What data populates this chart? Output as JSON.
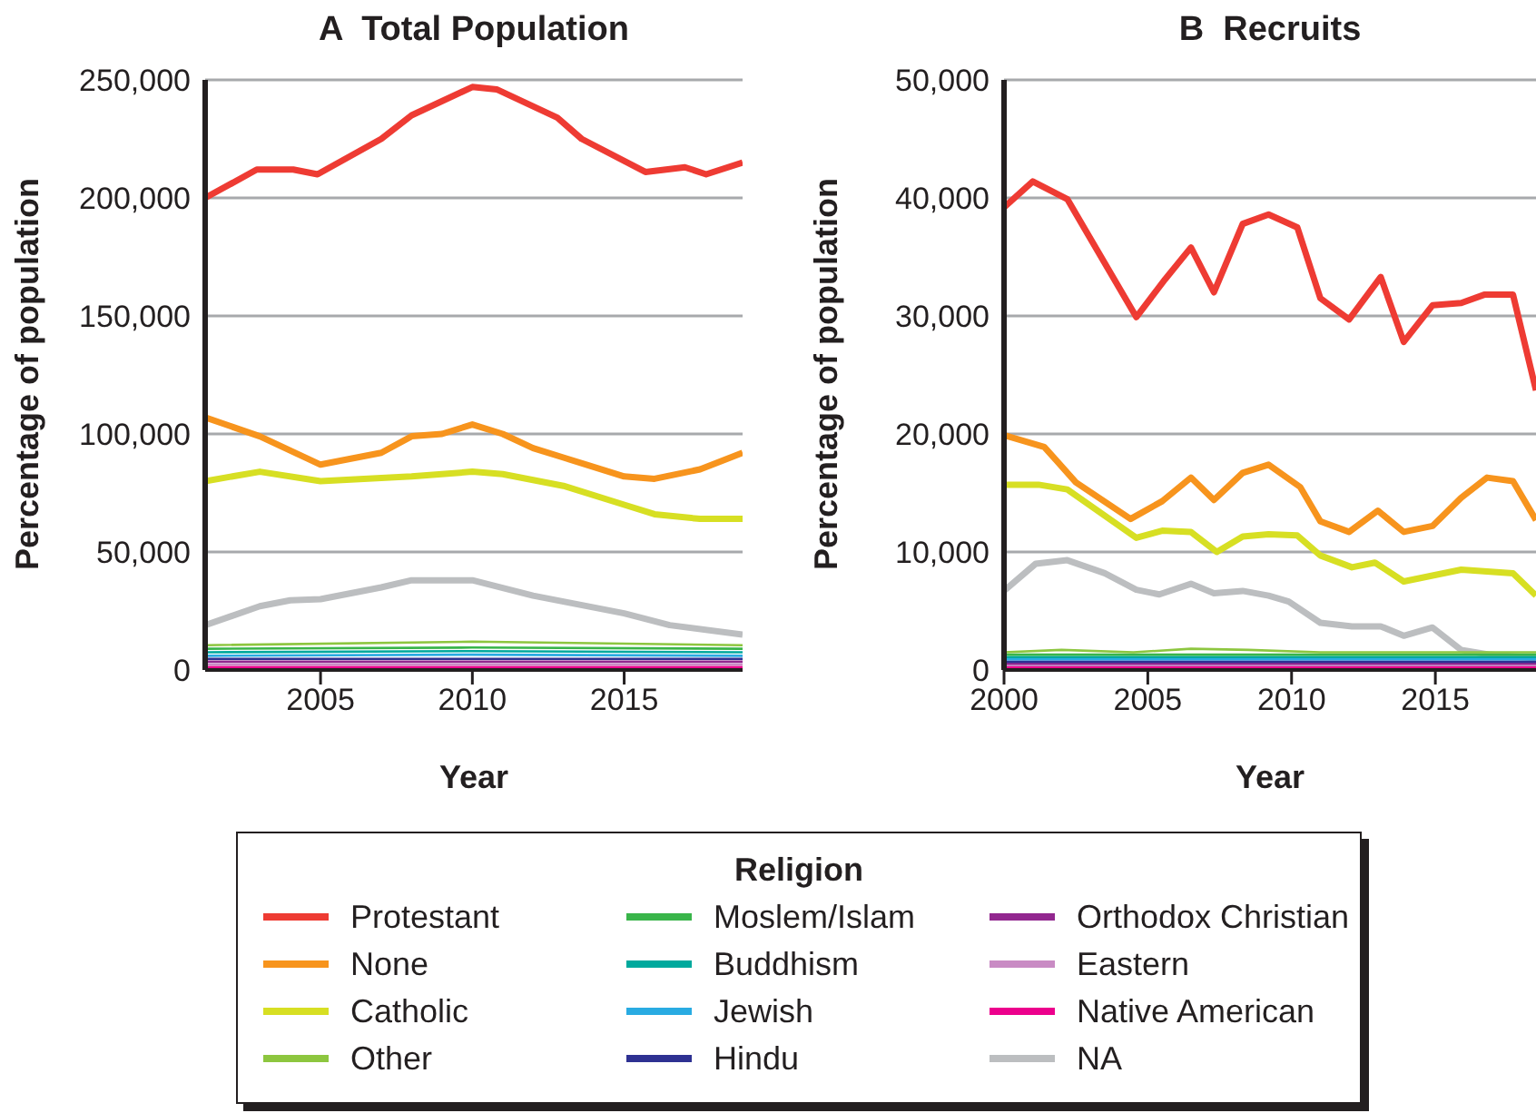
{
  "chart_data": [
    {
      "type": "line",
      "title": "A  Total Population",
      "xlabel": "Year",
      "ylabel": "Percentage of population",
      "legend_title": "Religion",
      "legend": "bottom",
      "grid": "y",
      "xlim": [
        2001.2,
        2018.9
      ],
      "xticks": [
        2005,
        2010,
        2015
      ],
      "ylim": [
        0,
        250000
      ],
      "yticks": [
        0,
        {
          "value": 50000,
          "label": "50,000"
        },
        {
          "value": 100000,
          "label": "100,000"
        },
        {
          "value": 150000,
          "label": "150,000"
        },
        {
          "value": 200000,
          "label": "200,000"
        },
        {
          "value": 250000,
          "label": "250,000"
        }
      ],
      "series": [
        {
          "name": "Protestant",
          "color": "#ee3b33",
          "x": [
            2001.2,
            2002.9,
            2004.1,
            2004.9,
            2007,
            2008,
            2010,
            2010.8,
            2012.8,
            2013.6,
            2015.7,
            2017,
            2017.7,
            2018.9
          ],
          "values": [
            200000,
            212000,
            212000,
            210000,
            225000,
            235000,
            247000,
            246000,
            234000,
            225000,
            211000,
            213000,
            210000,
            215000
          ]
        },
        {
          "name": "None",
          "color": "#f7941d",
          "x": [
            2001.2,
            2003,
            2005,
            2007,
            2008,
            2009,
            2010,
            2011,
            2012,
            2013,
            2015,
            2016,
            2017.5,
            2018.9
          ],
          "values": [
            107000,
            99000,
            87000,
            92000,
            99000,
            100000,
            104000,
            100000,
            94000,
            90000,
            82000,
            81000,
            85000,
            92000
          ]
        },
        {
          "name": "Catholic",
          "color": "#d7df23",
          "x": [
            2001.2,
            2003,
            2005,
            2008,
            2010,
            2011,
            2013,
            2015,
            2016,
            2017.5,
            2018.9
          ],
          "values": [
            80000,
            84000,
            80000,
            82000,
            84000,
            83000,
            78000,
            70000,
            66000,
            64000,
            64000
          ]
        },
        {
          "name": "Other",
          "color": "#8dc63f",
          "x": [
            2001.2,
            2010,
            2018.9
          ],
          "values": [
            10500,
            12000,
            10500
          ]
        },
        {
          "name": "Moslem/Islam",
          "color": "#39b54a",
          "x": [
            2001.2,
            2010,
            2018.9
          ],
          "values": [
            9000,
            9500,
            9000
          ]
        },
        {
          "name": "Buddhism",
          "color": "#00a99d",
          "x": [
            2001.2,
            2010,
            2018.9
          ],
          "values": [
            7500,
            8000,
            7500
          ]
        },
        {
          "name": "Jewish",
          "color": "#29abe2",
          "x": [
            2001.2,
            2010,
            2018.9
          ],
          "values": [
            6000,
            6500,
            6000
          ]
        },
        {
          "name": "Hindu",
          "color": "#2e3192",
          "x": [
            2001.2,
            2010,
            2018.9
          ],
          "values": [
            4700,
            4700,
            4700
          ]
        },
        {
          "name": "Orthodox Christian",
          "color": "#92278f",
          "x": [
            2001.2,
            2010,
            2018.9
          ],
          "values": [
            3500,
            3500,
            3500
          ]
        },
        {
          "name": "Eastern",
          "color": "#c98bc4",
          "x": [
            2001.2,
            2010,
            2018.9
          ],
          "values": [
            2300,
            2300,
            2300
          ]
        },
        {
          "name": "Native American",
          "color": "#ec008c",
          "x": [
            2001.2,
            2010,
            2018.9
          ],
          "values": [
            1200,
            1200,
            1200
          ]
        },
        {
          "name": "NA",
          "color": "#bcbec0",
          "x": [
            2001.2,
            2003,
            2004,
            2005,
            2007,
            2008,
            2010,
            2012,
            2014,
            2015,
            2016.5,
            2018.9
          ],
          "values": [
            19000,
            27000,
            29500,
            30000,
            35000,
            38000,
            38000,
            31500,
            26500,
            24000,
            19000,
            15000
          ]
        }
      ]
    },
    {
      "type": "line",
      "title": "B  Recruits",
      "xlabel": "Year",
      "ylabel": "Percentage of population",
      "grid": "y",
      "xlim": [
        2000,
        2018.5
      ],
      "xticks": [
        2000,
        2005,
        2010,
        2015
      ],
      "ylim": [
        0,
        50000
      ],
      "yticks": [
        0,
        {
          "value": 10000,
          "label": "10,000"
        },
        {
          "value": 20000,
          "label": "20,000"
        },
        {
          "value": 30000,
          "label": "30,000"
        },
        {
          "value": 40000,
          "label": "40,000"
        },
        {
          "value": 50000,
          "label": "50,000"
        }
      ],
      "series": [
        {
          "color": "#ee3b33",
          "x": [
            2000,
            2001,
            2002.2,
            2004.6,
            2005.6,
            2006.5,
            2007.3,
            2008.3,
            2009.2,
            2010.2,
            2011,
            2012,
            2013.1,
            2013.9,
            2014.9,
            2015.9,
            2016.7,
            2017.7,
            2018.5
          ],
          "values": [
            39200,
            41400,
            39900,
            29900,
            33100,
            35800,
            32000,
            37800,
            38600,
            37500,
            31500,
            29700,
            33300,
            27800,
            30900,
            31100,
            31800,
            31800,
            23700
          ]
        },
        {
          "color": "#f7941d",
          "x": [
            2000,
            2001.4,
            2002.5,
            2004.4,
            2005.5,
            2006.5,
            2007.3,
            2008.3,
            2009.2,
            2010.3,
            2011,
            2012,
            2013,
            2013.9,
            2014.9,
            2015.9,
            2016.8,
            2017.7,
            2018.5
          ],
          "values": [
            19900,
            18900,
            15900,
            12800,
            14300,
            16300,
            14400,
            16700,
            17400,
            15500,
            12600,
            11700,
            13500,
            11700,
            12200,
            14600,
            16300,
            16000,
            12700
          ]
        },
        {
          "color": "#d7df23",
          "x": [
            2000,
            2001.2,
            2002.2,
            2004.6,
            2005.5,
            2006.5,
            2007.4,
            2008.3,
            2009.2,
            2010.2,
            2011,
            2012.1,
            2012.9,
            2013.9,
            2014.9,
            2015.9,
            2017.7,
            2018.5
          ],
          "values": [
            15700,
            15700,
            15300,
            11200,
            11800,
            11700,
            10000,
            11300,
            11500,
            11400,
            9700,
            8700,
            9100,
            7500,
            8000,
            8500,
            8200,
            6300
          ]
        },
        {
          "color": "#8dc63f",
          "x": [
            2000,
            2002,
            2004.5,
            2006.5,
            2008.5,
            2011,
            2015,
            2018.5
          ],
          "values": [
            1500,
            1700,
            1500,
            1800,
            1700,
            1500,
            1500,
            1500
          ]
        },
        {
          "color": "#39b54a",
          "x": [
            2000,
            2010,
            2018.5
          ],
          "values": [
            1300,
            1300,
            1300
          ]
        },
        {
          "color": "#00a99d",
          "x": [
            2000,
            2010,
            2018.5
          ],
          "values": [
            1100,
            1100,
            1100
          ]
        },
        {
          "color": "#29abe2",
          "x": [
            2000,
            2010,
            2018.5
          ],
          "values": [
            900,
            900,
            900
          ]
        },
        {
          "color": "#2e3192",
          "x": [
            2000,
            2010,
            2018.5
          ],
          "values": [
            700,
            700,
            700
          ]
        },
        {
          "color": "#92278f",
          "x": [
            2000,
            2010,
            2018.5
          ],
          "values": [
            550,
            550,
            550
          ]
        },
        {
          "color": "#c98bc4",
          "x": [
            2000,
            2010,
            2018.5
          ],
          "values": [
            400,
            400,
            400
          ]
        },
        {
          "color": "#ec008c",
          "x": [
            2000,
            2010,
            2018.5
          ],
          "values": [
            250,
            250,
            250
          ]
        },
        {
          "color": "#bcbec0",
          "x": [
            2000,
            2001.1,
            2002.2,
            2003.5,
            2004.6,
            2005.4,
            2006.5,
            2007.3,
            2008.3,
            2009.2,
            2009.9,
            2011,
            2012.1,
            2013.1,
            2013.9,
            2014.9,
            2015.9,
            2016.9,
            2018.5
          ],
          "values": [
            6700,
            9000,
            9300,
            8200,
            6800,
            6400,
            7300,
            6500,
            6700,
            6300,
            5800,
            4000,
            3700,
            3700,
            2900,
            3600,
            1700,
            1300,
            1000
          ]
        }
      ]
    }
  ]
}
